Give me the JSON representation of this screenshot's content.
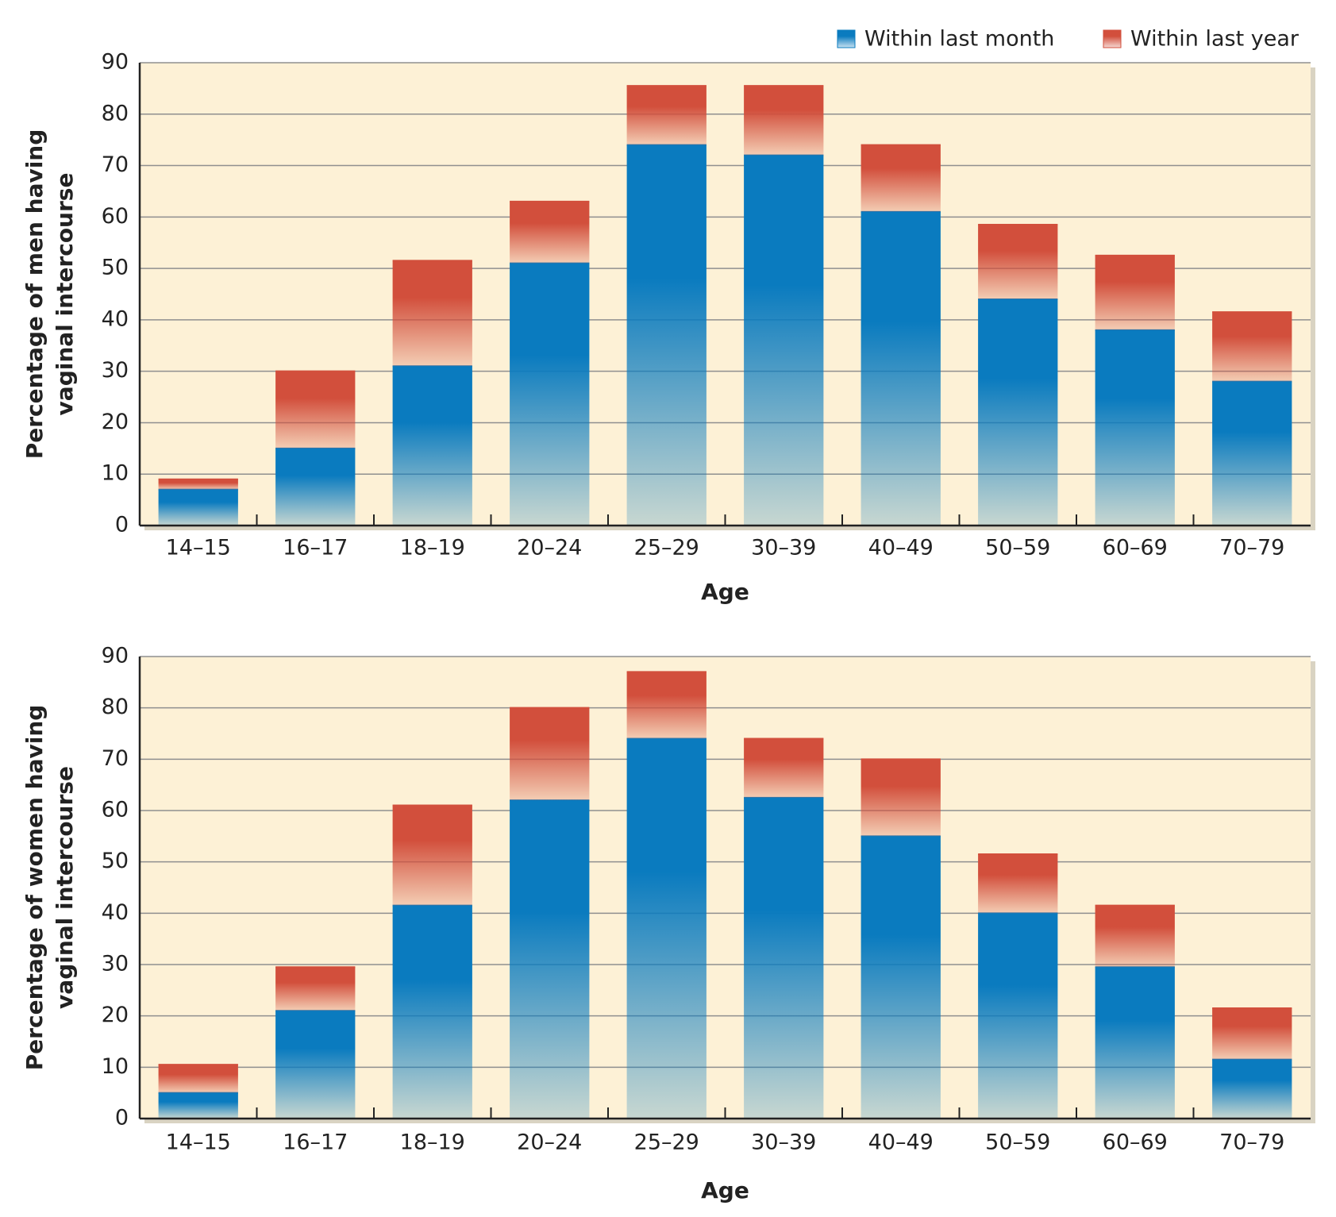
{
  "chart_data": [
    {
      "type": "bar",
      "stacked": true,
      "legend": "top-right",
      "grid": true,
      "ylabel": [
        "Percentage of men having",
        "vaginal intercourse"
      ],
      "xlabel": "Age",
      "categories": [
        "14–15",
        "16–17",
        "18–19",
        "20–24",
        "25–29",
        "30–39",
        "40–49",
        "50–59",
        "60–69",
        "70–79"
      ],
      "series": [
        {
          "name": "Within last month",
          "color": "#0a7bbf",
          "values": [
            7,
            15,
            31,
            51,
            74,
            72,
            61,
            44,
            38,
            28
          ]
        },
        {
          "name": "Within last year",
          "color": "#d24f3c",
          "values": [
            2,
            15,
            20.5,
            12,
            11.5,
            13.5,
            13,
            14.5,
            14.5,
            13.5
          ]
        }
      ],
      "ylim": [
        0,
        90
      ],
      "yticks": [
        0,
        10,
        20,
        30,
        40,
        50,
        60,
        70,
        80,
        90
      ]
    },
    {
      "type": "bar",
      "stacked": true,
      "grid": true,
      "ylabel": [
        "Percentage of women having",
        "vaginal intercourse"
      ],
      "xlabel": "Age",
      "categories": [
        "14–15",
        "16–17",
        "18–19",
        "20–24",
        "25–29",
        "30–39",
        "40–49",
        "50–59",
        "60–69",
        "70–79"
      ],
      "series": [
        {
          "color": "#0a7bbf",
          "values": [
            5,
            21,
            41.5,
            62,
            74,
            62.5,
            55,
            40,
            29.5,
            11.5
          ]
        },
        {
          "color": "#d24f3c",
          "values": [
            5.5,
            8.5,
            19.5,
            18,
            13,
            11.5,
            15,
            11.5,
            12,
            10
          ]
        }
      ],
      "ylim": [
        0,
        90
      ],
      "yticks": [
        0,
        10,
        20,
        30,
        40,
        50,
        60,
        70,
        80,
        90
      ]
    }
  ]
}
